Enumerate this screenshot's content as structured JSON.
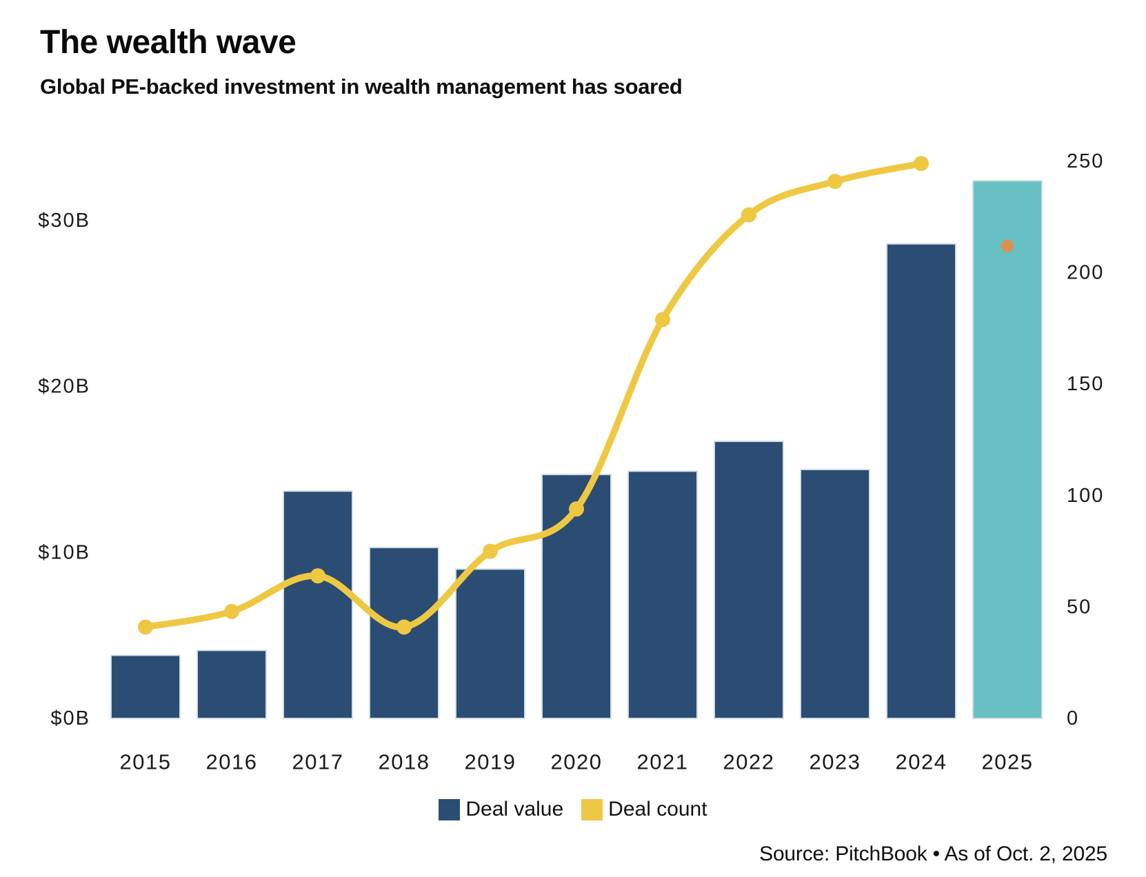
{
  "header": {
    "title": "The wealth wave",
    "subtitle": "Global PE-backed investment in wealth management has soared"
  },
  "legend": {
    "items": [
      {
        "label": "Deal value",
        "color": "#2B4D74"
      },
      {
        "label": "Deal count",
        "color": "#EFC843"
      }
    ]
  },
  "footer": {
    "source": "Source: PitchBook • As of Oct. 2, 2025"
  },
  "chart_data": {
    "type": "combo-bar-line",
    "title": "The wealth wave",
    "subtitle": "Global PE-backed investment in wealth management has soared",
    "categories": [
      "2015",
      "2016",
      "2017",
      "2018",
      "2019",
      "2020",
      "2021",
      "2022",
      "2023",
      "2024",
      "2025"
    ],
    "series": [
      {
        "name": "Deal value",
        "type": "bar",
        "axis": "left",
        "unit": "USD billions",
        "values": [
          3.8,
          4.1,
          13.7,
          10.3,
          9.0,
          14.7,
          14.9,
          16.7,
          15.0,
          28.6,
          32.4
        ],
        "color": "#2B4D74",
        "bar_outline_color": "#D3DDE6",
        "highlight": {
          "index": 10,
          "category": "2025",
          "color": "#68C0C5"
        }
      },
      {
        "name": "Deal count",
        "type": "line",
        "axis": "right",
        "values": [
          41,
          48,
          64,
          41,
          75,
          94,
          179,
          226,
          241,
          249
        ],
        "color": "#EFC843",
        "isolated_point": {
          "index": 10,
          "category": "2025",
          "value": 212,
          "color": "#DE8F4E"
        }
      }
    ],
    "left_axis": {
      "ticks": [
        {
          "label": "$0B",
          "value": 0
        },
        {
          "label": "$10B",
          "value": 10
        },
        {
          "label": "$20B",
          "value": 20
        },
        {
          "label": "$30B",
          "value": 30
        }
      ],
      "range": [
        0,
        33.6
      ]
    },
    "right_axis": {
      "ticks": [
        {
          "label": "0",
          "value": 0
        },
        {
          "label": "50",
          "value": 50
        },
        {
          "label": "100",
          "value": 100
        },
        {
          "label": "150",
          "value": 150
        },
        {
          "label": "200",
          "value": 200
        },
        {
          "label": "250",
          "value": 250
        }
      ],
      "range": [
        0,
        250
      ]
    },
    "grid": false,
    "legend_position": "bottom"
  }
}
